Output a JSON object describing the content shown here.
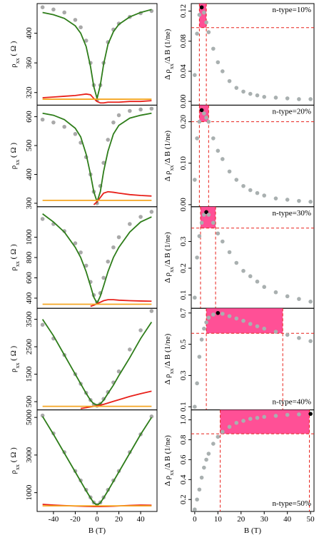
{
  "chart_data": [
    {
      "type": "line",
      "ylabel": [
        "ρ",
        "xx",
        " ( Ω )"
      ],
      "xlim": [
        -55,
        55
      ],
      "ylim": [
        303,
        440
      ],
      "yticks": [
        320,
        360,
        400
      ],
      "x": [
        -50,
        -40,
        -30,
        -20,
        -15,
        -10,
        -6,
        -3,
        0,
        3,
        6,
        10,
        15,
        20,
        30,
        40,
        50
      ],
      "series": [
        {
          "style": "points",
          "color": "#a9a9a9",
          "values": [
            435,
            432,
            428,
            418,
            408,
            390,
            360,
            330,
            310,
            330,
            360,
            388,
            405,
            413,
            422,
            427,
            430
          ]
        },
        {
          "style": "line",
          "color": "#2e7d1a",
          "values": [
            428,
            425,
            420,
            410,
            400,
            382,
            355,
            328,
            312,
            330,
            358,
            385,
            402,
            412,
            422,
            428,
            432
          ]
        },
        {
          "style": "line",
          "color": "#e8201a",
          "values": [
            313,
            314,
            315,
            316,
            317,
            318,
            317,
            312,
            308,
            306,
            306,
            307,
            307,
            307,
            308,
            308,
            309
          ]
        },
        {
          "style": "line",
          "color": "#f5a623",
          "values": [
            311,
            311,
            311,
            311,
            311,
            311,
            311,
            311,
            311,
            311,
            311,
            311,
            311,
            311,
            311,
            311,
            311
          ]
        }
      ]
    },
    {
      "type": "scatter",
      "label": "n-type=10%",
      "label_corner": "top",
      "ylabel": [
        "Δ ρ",
        "xx",
        "/Δ B  (1/ne)"
      ],
      "xlim": [
        -1.5,
        51.5
      ],
      "ylim": [
        -0.005,
        0.13
      ],
      "yticks": [
        {
          "value": 0,
          "label": "0.00"
        },
        {
          "value": 0.04,
          "label": "0.04"
        },
        {
          "value": 0.08,
          "label": "0.08"
        },
        {
          "value": 0.12,
          "label": "0.12"
        }
      ],
      "x": [
        0,
        1,
        2,
        3,
        4,
        5,
        6,
        8,
        10,
        12,
        15,
        18,
        21,
        24,
        27,
        30,
        35,
        40,
        45,
        50
      ],
      "values": [
        0.035,
        0.09,
        0.115,
        0.125,
        0.118,
        0.105,
        0.092,
        0.07,
        0.052,
        0.04,
        0.027,
        0.018,
        0.013,
        0.01,
        0.008,
        0.006,
        0.005,
        0.004,
        0.003,
        0.003
      ],
      "color": "#a9b0b0",
      "peak_color": "#000000",
      "highlight": {
        "xmin": 2,
        "xmax": 5,
        "ythreshold": 0.098,
        "color": "#ff3d8b",
        "line_color": "#e8201a"
      }
    },
    {
      "type": "line",
      "ylabel": [
        "ρ",
        "xx",
        " ( Ω )"
      ],
      "xlim": [
        -55,
        55
      ],
      "ylim": [
        288,
        640
      ],
      "yticks": [
        300,
        400,
        500,
        600
      ],
      "x": [
        -50,
        -40,
        -30,
        -20,
        -15,
        -10,
        -6,
        -3,
        0,
        3,
        6,
        10,
        15,
        20,
        30,
        40,
        50
      ],
      "series": [
        {
          "style": "points",
          "color": "#a9a9a9",
          "values": [
            590,
            580,
            565,
            540,
            510,
            460,
            400,
            340,
            300,
            360,
            440,
            520,
            580,
            605,
            620,
            625,
            628
          ]
        },
        {
          "style": "line",
          "color": "#2e7d1a",
          "values": [
            612,
            605,
            590,
            560,
            530,
            470,
            400,
            340,
            305,
            340,
            410,
            480,
            540,
            570,
            595,
            605,
            612
          ]
        },
        {
          "style": "line",
          "color": "#e8201a",
          "values": [
            null,
            null,
            null,
            null,
            null,
            null,
            null,
            295,
            305,
            320,
            335,
            340,
            338,
            335,
            330,
            327,
            325
          ]
        },
        {
          "style": "line",
          "color": "#f5a623",
          "values": [
            310,
            310,
            310,
            310,
            310,
            310,
            310,
            310,
            310,
            310,
            310,
            310,
            310,
            310,
            310,
            310,
            310
          ]
        }
      ]
    },
    {
      "type": "scatter",
      "label": "n-type=20%",
      "label_corner": "top",
      "ylabel": [
        "Δ ρ",
        "xx",
        "/Δ B  (1/ne)"
      ],
      "xlim": [
        -1.5,
        51.5
      ],
      "ylim": [
        -0.005,
        0.24
      ],
      "yticks": [
        {
          "value": 0,
          "label": "0.00"
        },
        {
          "value": 0.1,
          "label": "0.10"
        },
        {
          "value": 0.2,
          "label": "0.20"
        }
      ],
      "x": [
        0,
        1,
        2,
        3,
        4,
        5,
        6,
        8,
        10,
        12,
        15,
        18,
        21,
        24,
        27,
        30,
        35,
        40,
        45,
        50
      ],
      "values": [
        0.06,
        0.16,
        0.2,
        0.228,
        0.22,
        0.21,
        0.2,
        0.16,
        0.13,
        0.11,
        0.08,
        0.06,
        0.045,
        0.035,
        0.028,
        0.022,
        0.015,
        0.012,
        0.009,
        0.007
      ],
      "color": "#a9b0b0",
      "peak_color": "#000000",
      "highlight": {
        "xmin": 2,
        "xmax": 6,
        "ythreshold": 0.2,
        "color": "#ff3d8b",
        "line_color": "#e8201a"
      }
    },
    {
      "type": "line",
      "ylabel": [
        "ρ",
        "xx",
        " ( Ω )"
      ],
      "xlim": [
        -55,
        55
      ],
      "ylim": [
        300,
        1300
      ],
      "yticks": [
        400,
        600,
        800,
        1000
      ],
      "x": [
        -50,
        -40,
        -30,
        -20,
        -15,
        -10,
        -6,
        -3,
        0,
        3,
        6,
        10,
        15,
        20,
        30,
        40,
        50
      ],
      "series": [
        {
          "style": "points",
          "color": "#a9a9a9",
          "values": [
            1180,
            1130,
            1060,
            940,
            850,
            720,
            560,
            430,
            360,
            450,
            600,
            760,
            900,
            1000,
            1130,
            1200,
            1250
          ]
        },
        {
          "style": "line",
          "color": "#2e7d1a",
          "values": [
            1230,
            1150,
            1050,
            900,
            800,
            660,
            520,
            410,
            350,
            420,
            520,
            660,
            800,
            900,
            1050,
            1150,
            1200
          ]
        },
        {
          "style": "line",
          "color": "#e8201a",
          "values": [
            null,
            null,
            null,
            null,
            null,
            null,
            320,
            330,
            345,
            360,
            375,
            385,
            385,
            380,
            375,
            372,
            370
          ]
        },
        {
          "style": "line",
          "color": "#f5a623",
          "values": [
            340,
            340,
            340,
            340,
            340,
            340,
            340,
            340,
            340,
            340,
            340,
            340,
            340,
            340,
            340,
            340,
            340
          ]
        }
      ]
    },
    {
      "type": "scatter",
      "label": "n-type=30%",
      "label_corner": "top",
      "ylabel": [
        "Δ ρ",
        "xx",
        "/Δ B  (1/ne)"
      ],
      "xlim": [
        -1.5,
        51.5
      ],
      "ylim": [
        0.05,
        0.43
      ],
      "yticks": [
        0.1,
        0.2,
        0.3
      ],
      "x": [
        0,
        1,
        2,
        3,
        4,
        5,
        6,
        8,
        10,
        12,
        15,
        18,
        21,
        24,
        27,
        30,
        35,
        40,
        45,
        50
      ],
      "values": [
        0.09,
        0.24,
        0.32,
        0.37,
        0.4,
        0.41,
        0.4,
        0.37,
        0.33,
        0.3,
        0.26,
        0.22,
        0.19,
        0.17,
        0.15,
        0.13,
        0.11,
        0.095,
        0.085,
        0.075
      ],
      "color": "#a9b0b0",
      "peak_color": "#000000",
      "highlight": {
        "xmin": 2.5,
        "xmax": 9,
        "ythreshold": 0.35,
        "color": "#ff3d8b",
        "line_color": "#e8201a"
      }
    },
    {
      "type": "line",
      "ylabel": [
        "ρ",
        "xx",
        " ( Ω )"
      ],
      "xlim": [
        -55,
        55
      ],
      "ylim": [
        200,
        3900
      ],
      "yticks": [
        500,
        1500,
        2500,
        3500
      ],
      "x": [
        -50,
        -40,
        -30,
        -20,
        -15,
        -10,
        -6,
        -3,
        0,
        3,
        6,
        10,
        15,
        20,
        30,
        40,
        50
      ],
      "series": [
        {
          "style": "points",
          "color": "#a9a9a9",
          "values": [
            3300,
            2800,
            2200,
            1500,
            1150,
            820,
            560,
            400,
            350,
            420,
            600,
            850,
            1200,
            1600,
            2400,
            3100,
            3800
          ]
        },
        {
          "style": "line",
          "color": "#2e7d1a",
          "values": [
            3500,
            2900,
            2200,
            1500,
            1150,
            800,
            550,
            420,
            380,
            420,
            550,
            800,
            1100,
            1450,
            2100,
            2800,
            3400
          ]
        },
        {
          "style": "line",
          "color": "#e8201a",
          "values": [
            null,
            null,
            null,
            null,
            250,
            280,
            310,
            330,
            350,
            370,
            400,
            450,
            510,
            570,
            690,
            790,
            880
          ]
        },
        {
          "style": "line",
          "color": "#f5a623",
          "values": [
            330,
            330,
            330,
            330,
            330,
            330,
            330,
            330,
            330,
            330,
            330,
            330,
            330,
            330,
            330,
            330,
            330
          ]
        }
      ]
    },
    {
      "type": "scatter",
      "label": "n-type=40%",
      "label_corner": "bottom",
      "ylabel": [
        "Δ ρ",
        "xx",
        "/Δ B  (1/ne)"
      ],
      "xlim": [
        -1.5,
        51.5
      ],
      "ylim": [
        0.08,
        0.73
      ],
      "yticks": [
        0.1,
        0.3,
        0.5,
        0.7
      ],
      "x": [
        0,
        1,
        2,
        3,
        4,
        5,
        6,
        8,
        10,
        12,
        15,
        18,
        21,
        24,
        27,
        30,
        35,
        40,
        45,
        50
      ],
      "values": [
        0.1,
        0.25,
        0.42,
        0.53,
        0.6,
        0.64,
        0.67,
        0.69,
        0.7,
        0.695,
        0.68,
        0.665,
        0.65,
        0.63,
        0.615,
        0.6,
        0.58,
        0.56,
        0.54,
        0.52
      ],
      "color": "#a9b0b0",
      "peak_color": "#000000",
      "highlight": {
        "xmin": 5,
        "xmax": 38,
        "ythreshold": 0.57,
        "color": "#ff3d8b",
        "line_color": "#e8201a"
      }
    },
    {
      "type": "line",
      "ylabel": [
        "ρ",
        "xx",
        " ( Ω )"
      ],
      "xlabel": "B (T)",
      "xlim": [
        -55,
        55
      ],
      "ylim": [
        0,
        5400
      ],
      "yticks": [
        1000,
        3000,
        5000
      ],
      "xticks": [
        -40,
        -20,
        0,
        20,
        40
      ],
      "x": [
        -50,
        -40,
        -30,
        -20,
        -15,
        -10,
        -6,
        -3,
        0,
        3,
        6,
        10,
        15,
        20,
        30,
        40,
        50
      ],
      "series": [
        {
          "style": "points",
          "color": "#a9a9a9",
          "values": [
            5100,
            4150,
            3150,
            2150,
            1650,
            1150,
            750,
            480,
            350,
            480,
            750,
            1150,
            1650,
            2150,
            3150,
            4100,
            5050
          ]
        },
        {
          "style": "line",
          "color": "#2e7d1a",
          "values": [
            5050,
            4100,
            3100,
            2100,
            1600,
            1100,
            720,
            460,
            340,
            460,
            720,
            1100,
            1600,
            2100,
            3100,
            4100,
            5000
          ]
        },
        {
          "style": "line",
          "color": "#e8201a",
          "values": [
            380,
            340,
            310,
            290,
            280,
            270,
            265,
            262,
            260,
            262,
            265,
            270,
            280,
            295,
            320,
            340,
            330
          ]
        },
        {
          "style": "line",
          "color": "#f5a623",
          "values": [
            300,
            300,
            300,
            300,
            300,
            300,
            300,
            300,
            300,
            300,
            300,
            300,
            300,
            300,
            300,
            300,
            300
          ]
        }
      ]
    },
    {
      "type": "scatter",
      "label": "n-type=50%",
      "label_corner": "bottom",
      "ylabel": [
        "Δ ρ",
        "xx",
        "/Δ B  (1/ne)"
      ],
      "xlabel": "B (T)",
      "xlim": [
        -1.5,
        51.5
      ],
      "ylim": [
        0.08,
        1.1
      ],
      "yticks": [
        0.2,
        0.4,
        0.6,
        0.8,
        {
          "value": 1,
          "label": "1.0"
        }
      ],
      "xticks": [
        0,
        10,
        20,
        30,
        40,
        50
      ],
      "x": [
        0,
        1,
        2,
        3,
        4,
        5,
        6,
        8,
        10,
        12,
        15,
        18,
        21,
        24,
        27,
        30,
        35,
        40,
        45,
        50
      ],
      "values": [
        0.1,
        0.2,
        0.3,
        0.42,
        0.52,
        0.6,
        0.66,
        0.76,
        0.83,
        0.88,
        0.93,
        0.97,
        0.99,
        1.01,
        1.02,
        1.03,
        1.04,
        1.05,
        1.055,
        1.06
      ],
      "color": "#a9b0b0",
      "peak_color": "#000000",
      "highlight": {
        "xmin": 11,
        "xmax": 49.5,
        "ythreshold": 0.86,
        "color": "#ff3d8b",
        "line_color": "#e8201a"
      }
    }
  ]
}
